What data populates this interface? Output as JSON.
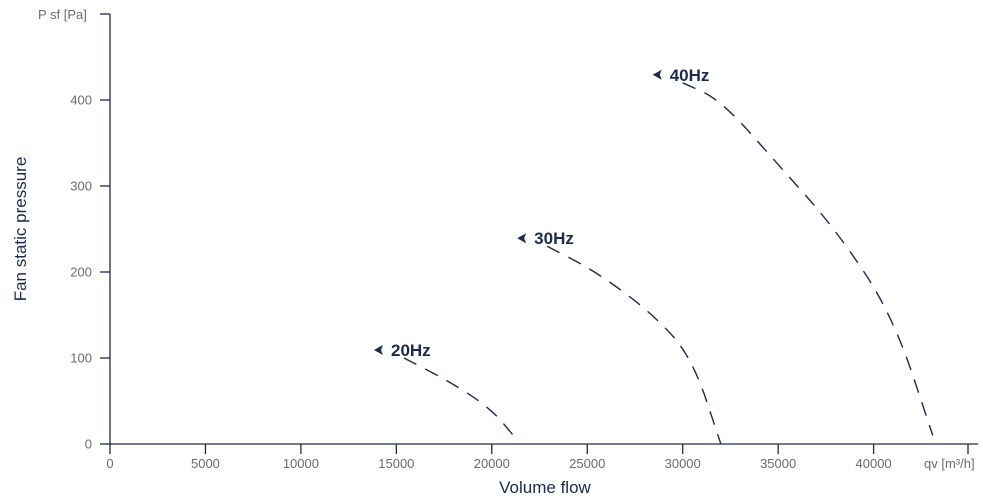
{
  "chart_data": {
    "type": "line",
    "xlabel": "Volume flow",
    "ylabel": "Fan static pressure",
    "x_unit_label": "qv [m³/h]",
    "y_unit_label": "P sf [Pa]",
    "xlim": [
      0,
      45000
    ],
    "ylim": [
      0,
      500
    ],
    "x_ticks": [
      0,
      5000,
      10000,
      15000,
      20000,
      25000,
      30000,
      35000,
      40000
    ],
    "y_ticks": [
      0,
      100,
      200,
      300,
      400
    ],
    "grid": false,
    "colors": {
      "axis": "#1c2b4a",
      "curve": "#1c2b4a",
      "tick_text": "#6b6b6b"
    },
    "series": [
      {
        "name": "20Hz",
        "x": [
          15400,
          18000,
          20000,
          21200
        ],
        "y": [
          100,
          70,
          40,
          8
        ]
      },
      {
        "name": "30Hz",
        "x": [
          22900,
          25500,
          28500,
          30500,
          32000
        ],
        "y": [
          230,
          200,
          150,
          100,
          0
        ]
      },
      {
        "name": "40Hz",
        "x": [
          30000,
          32000,
          35000,
          38000,
          41000,
          43100
        ],
        "y": [
          420,
          400,
          325,
          250,
          150,
          10
        ]
      }
    ]
  }
}
